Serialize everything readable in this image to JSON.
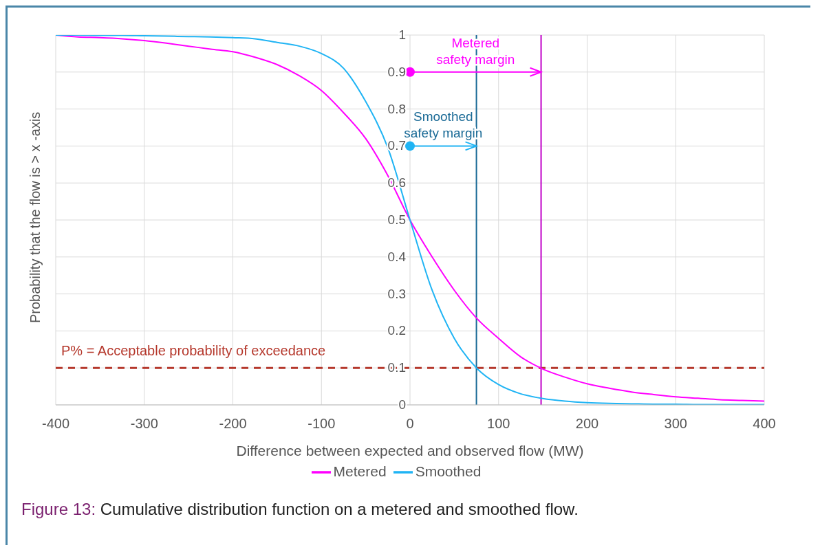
{
  "chart_data": {
    "type": "line",
    "xlabel": "Difference between expected and observed flow (MW)",
    "ylabel": "Probability that the flow is > x -axis",
    "x": [
      -400,
      -375,
      -350,
      -325,
      -300,
      -275,
      -250,
      -225,
      -200,
      -175,
      -150,
      -125,
      -100,
      -75,
      -50,
      -25,
      0,
      25,
      50,
      75,
      100,
      125,
      150,
      175,
      200,
      225,
      250,
      275,
      300,
      325,
      350,
      375,
      400
    ],
    "series": [
      {
        "name": "Metered",
        "color": "#ff00ff",
        "values": [
          1.0,
          0.995,
          0.993,
          0.99,
          0.985,
          0.978,
          0.97,
          0.962,
          0.955,
          0.94,
          0.92,
          0.89,
          0.85,
          0.79,
          0.72,
          0.62,
          0.5,
          0.4,
          0.31,
          0.235,
          0.18,
          0.13,
          0.097,
          0.075,
          0.057,
          0.045,
          0.035,
          0.028,
          0.022,
          0.018,
          0.014,
          0.012,
          0.01
        ]
      },
      {
        "name": "Smoothed",
        "color": "#20b4f4",
        "values": [
          1.0,
          1.0,
          0.999,
          0.999,
          0.998,
          0.997,
          0.996,
          0.995,
          0.993,
          0.99,
          0.98,
          0.97,
          0.95,
          0.91,
          0.82,
          0.695,
          0.5,
          0.31,
          0.18,
          0.1,
          0.055,
          0.03,
          0.017,
          0.01,
          0.006,
          0.004,
          0.003,
          0.002,
          0.002,
          0.001,
          0.001,
          0.001,
          0.001
        ]
      }
    ],
    "xlim": [
      -400,
      400
    ],
    "xticks": [
      -400,
      -300,
      -200,
      -100,
      0,
      100,
      200,
      300,
      400
    ],
    "ylim": [
      0,
      1
    ],
    "yticks": [
      0,
      0.1,
      0.2,
      0.3,
      0.4,
      0.5,
      0.6,
      0.7,
      0.8,
      0.9,
      1
    ],
    "ref_lines": [
      {
        "axis": "y",
        "value": 0.1,
        "label": "P% = Acceptable probability of exceedance",
        "color": "#b5382c",
        "line_style": "dashed"
      },
      {
        "axis": "x",
        "value": 75,
        "color": "#1a6a96",
        "line_style": "solid"
      },
      {
        "axis": "x",
        "value": 148,
        "color": "#c000c8",
        "line_style": "solid"
      }
    ],
    "annotations": [
      {
        "text": "Metered safety margin",
        "x": 148,
        "y": 0.9
      },
      {
        "text": "Smoothed safety margin",
        "x": 75,
        "y": 0.7
      },
      "Figure 13: Cumulative distribution function on a metered and smoothed flow."
    ],
    "grid": true,
    "legend": "bottom",
    "marker": "none",
    "line_style": "solid"
  }
}
